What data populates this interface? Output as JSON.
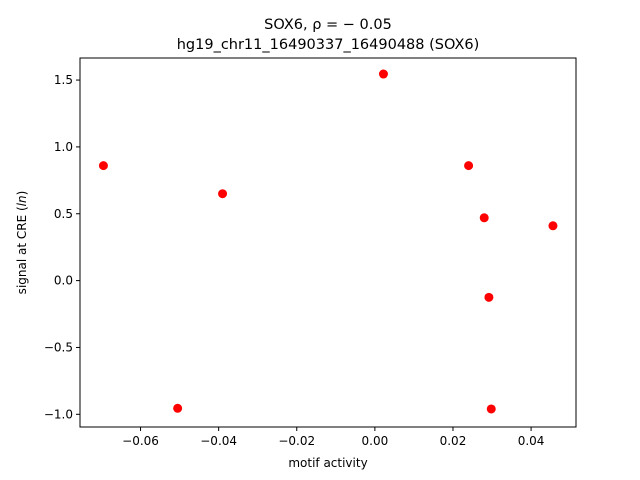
{
  "chart_data": {
    "type": "scatter",
    "title_line1": "SOX6, ρ = − 0.05",
    "title_line2": "hg19_chr11_16490337_16490488 (SOX6)",
    "xlabel": "motif activity",
    "ylabel": "signal at CRE (ln)",
    "ylabel_pre": "signal at CRE (",
    "ylabel_var": "ln",
    "ylabel_post": ")",
    "xlim": [
      -0.0755,
      0.0515
    ],
    "ylim": [
      -1.095,
      1.665
    ],
    "xticks": [
      -0.06,
      -0.04,
      -0.02,
      0.0,
      0.02,
      0.04
    ],
    "xtick_labels": [
      "−0.06",
      "−0.04",
      "−0.02",
      "0.00",
      "0.02",
      "0.04"
    ],
    "yticks": [
      -1.0,
      -0.5,
      0.0,
      0.5,
      1.0,
      1.5
    ],
    "ytick_labels": [
      "−1.0",
      "−0.5",
      "0.0",
      "0.5",
      "1.0",
      "1.5"
    ],
    "grid": false,
    "marker_color": "#ff0000",
    "points": [
      {
        "x": -0.0695,
        "y": 0.86
      },
      {
        "x": -0.0505,
        "y": -0.955
      },
      {
        "x": -0.039,
        "y": 0.65
      },
      {
        "x": 0.0022,
        "y": 1.545
      },
      {
        "x": 0.024,
        "y": 0.86
      },
      {
        "x": 0.028,
        "y": 0.47
      },
      {
        "x": 0.0292,
        "y": -0.125
      },
      {
        "x": 0.0298,
        "y": -0.96
      },
      {
        "x": 0.0456,
        "y": 0.41
      }
    ]
  }
}
